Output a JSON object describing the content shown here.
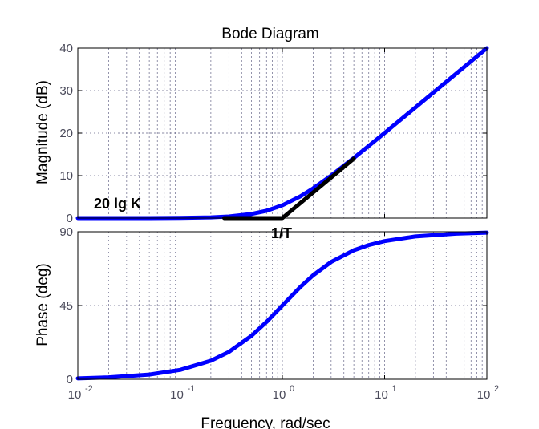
{
  "chart_data": [
    {
      "type": "line",
      "panel": "magnitude",
      "title": "Bode Diagram",
      "xlabel": "",
      "ylabel": "Magnitude (dB)",
      "xscale": "log",
      "xlim": [
        0.01,
        100
      ],
      "ylim": [
        0,
        40
      ],
      "yticks": [
        0,
        10,
        20,
        30,
        40
      ],
      "ytick_labels": [
        "0",
        "10",
        "20",
        "30",
        "40"
      ],
      "grid": true,
      "series": [
        {
          "color": "#0000ff",
          "x": [
            0.01,
            0.02,
            0.05,
            0.1,
            0.2,
            0.3,
            0.5,
            0.7,
            1,
            1.5,
            2,
            3,
            5,
            7,
            10,
            20,
            50,
            100
          ],
          "y": [
            0.0,
            0.0,
            0.01,
            0.04,
            0.17,
            0.37,
            0.97,
            1.72,
            3.01,
            5.12,
            6.99,
            10.0,
            14.15,
            17.0,
            20.04,
            26.03,
            33.98,
            40.0
          ]
        },
        {
          "color": "#000000",
          "x": [
            0.27,
            1,
            5
          ],
          "y": [
            0,
            0,
            14
          ]
        }
      ],
      "annotations": [
        {
          "text": "20 lg K",
          "x": 0.012,
          "y": 3
        },
        {
          "text": "1/T",
          "x": 1,
          "y": -2
        }
      ]
    },
    {
      "type": "line",
      "panel": "phase",
      "xlabel": "Frequency, rad/sec",
      "ylabel": "Phase (deg)",
      "xscale": "log",
      "xlim": [
        0.01,
        100
      ],
      "ylim": [
        0,
        90
      ],
      "yticks": [
        0,
        45,
        90
      ],
      "ytick_labels": [
        "0",
        "45",
        "90"
      ],
      "xticks": [
        0.01,
        0.1,
        1,
        10,
        100
      ],
      "xtick_labels": [
        {
          "base": "10",
          "exp": "-2"
        },
        {
          "base": "10",
          "exp": "-1"
        },
        {
          "base": "10",
          "exp": "0"
        },
        {
          "base": "10",
          "exp": "1"
        },
        {
          "base": "10",
          "exp": "2"
        }
      ],
      "grid": true,
      "series": [
        {
          "color": "#0000ff",
          "x": [
            0.01,
            0.02,
            0.05,
            0.1,
            0.2,
            0.3,
            0.5,
            0.7,
            1,
            1.5,
            2,
            3,
            5,
            7,
            10,
            20,
            50,
            100
          ],
          "y": [
            0.57,
            1.15,
            2.86,
            5.71,
            11.31,
            16.7,
            26.57,
            34.99,
            45.0,
            56.31,
            63.43,
            71.57,
            78.69,
            81.87,
            84.29,
            87.14,
            88.85,
            89.43
          ]
        }
      ]
    }
  ]
}
